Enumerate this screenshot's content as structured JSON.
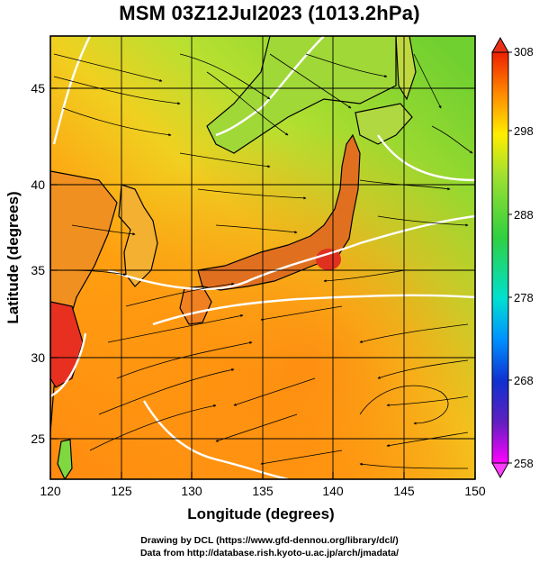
{
  "title": "MSM 03Z12Jul2023 (1013.2hPa)",
  "xaxis": {
    "label": "Longitude (degrees)",
    "range": [
      120,
      150
    ],
    "ticks": [
      "120",
      "125",
      "130",
      "135",
      "140",
      "145",
      "150"
    ]
  },
  "yaxis": {
    "label": "Latitude  (degrees)",
    "range": [
      22.4,
      47.6
    ],
    "ticks": [
      "25",
      "30",
      "35",
      "40",
      "45"
    ]
  },
  "colorbar": {
    "range": [
      258,
      308
    ],
    "ticks": [
      "308",
      "298",
      "288",
      "278",
      "268",
      "258"
    ],
    "colors": [
      "#ff00ff",
      "#2233cc",
      "#00aaff",
      "#00e0c0",
      "#40cc40",
      "#a0e030",
      "#ffff00",
      "#ffaa00",
      "#ff5500",
      "#ee2200"
    ]
  },
  "footer": {
    "line1": "Drawing by DCL (https://www.gfd-dennou.org/library/dcl/)",
    "line2": "Data from http://database.rish.kyoto-u.ac.jp/arch/jmadata/"
  }
}
